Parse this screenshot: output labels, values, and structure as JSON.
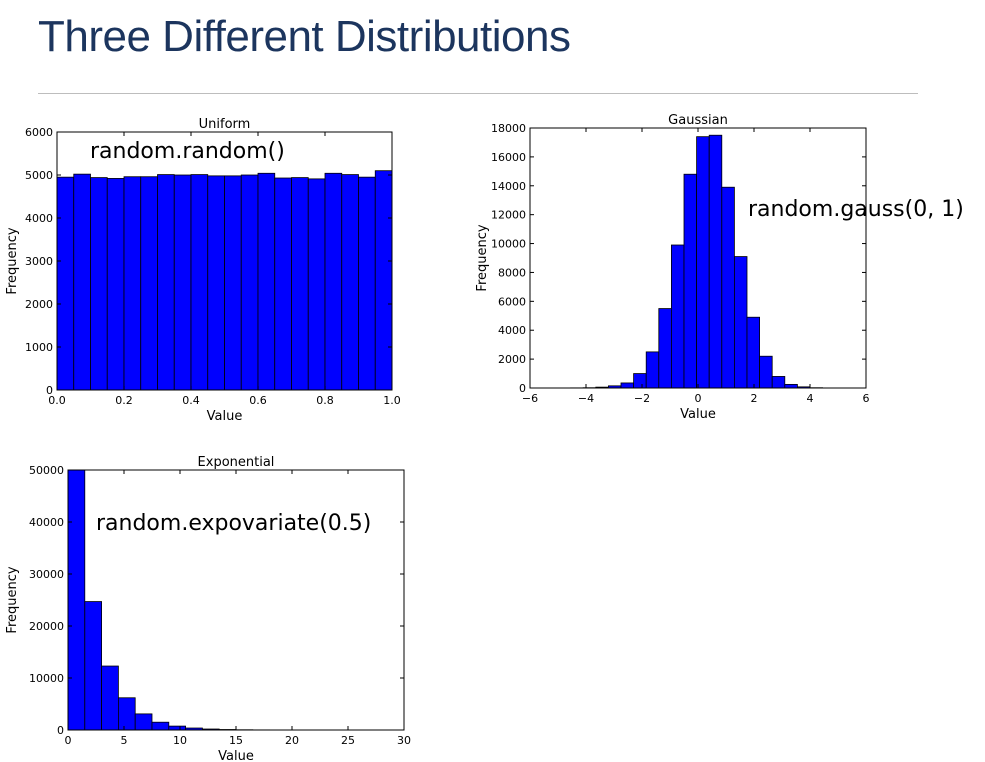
{
  "slide": {
    "title": "Three Different Distributions"
  },
  "chart_data": [
    {
      "type": "bar",
      "title": "Uniform",
      "xlabel": "Value",
      "ylabel": "Frequency",
      "annotation": "random.random()",
      "xlim": [
        0.0,
        1.0
      ],
      "ylim": [
        0,
        6000
      ],
      "xticks": [
        "0.0",
        "0.2",
        "0.4",
        "0.6",
        "0.8",
        "1.0"
      ],
      "yticks": [
        "0",
        "1000",
        "2000",
        "3000",
        "4000",
        "5000",
        "6000"
      ],
      "bin_start": 0.0,
      "bin_width": 0.05,
      "values": [
        4950,
        5020,
        4940,
        4920,
        4960,
        4960,
        5010,
        5000,
        5010,
        4980,
        4980,
        5000,
        5040,
        4930,
        4940,
        4910,
        5040,
        5010,
        4950,
        5100
      ],
      "bar_color": "#0000ff",
      "grid": false
    },
    {
      "type": "bar",
      "title": "Gaussian",
      "xlabel": "Value",
      "ylabel": "Frequency",
      "annotation": "random.gauss(0, 1)",
      "xlim": [
        -6,
        6
      ],
      "ylim": [
        0,
        18000
      ],
      "xticks": [
        "−6",
        "−4",
        "−2",
        "0",
        "2",
        "4",
        "6"
      ],
      "yticks": [
        "0",
        "2000",
        "4000",
        "6000",
        "8000",
        "10000",
        "12000",
        "14000",
        "16000",
        "18000"
      ],
      "bin_start": -5.0,
      "bin_width": 0.45,
      "values": [
        5,
        10,
        20,
        60,
        150,
        350,
        1000,
        2500,
        5500,
        9900,
        14800,
        17400,
        17500,
        13900,
        9100,
        4900,
        2200,
        800,
        250,
        80,
        20,
        5
      ],
      "bar_color": "#0000ff",
      "grid": false
    },
    {
      "type": "bar",
      "title": "Exponential",
      "xlabel": "Value",
      "ylabel": "Frequency",
      "annotation": "random.expovariate(0.5)",
      "xlim": [
        0,
        30
      ],
      "ylim": [
        0,
        50000
      ],
      "xticks": [
        "0",
        "5",
        "10",
        "15",
        "20",
        "25",
        "30"
      ],
      "yticks": [
        "0",
        "10000",
        "20000",
        "30000",
        "40000",
        "50000"
      ],
      "bin_start": 0.0,
      "bin_width": 1.5,
      "values": [
        50000,
        24700,
        12300,
        6200,
        3100,
        1500,
        750,
        380,
        190,
        95,
        48,
        24,
        12,
        6,
        3,
        2,
        1,
        1
      ],
      "bar_color": "#0000ff",
      "grid": false
    }
  ]
}
